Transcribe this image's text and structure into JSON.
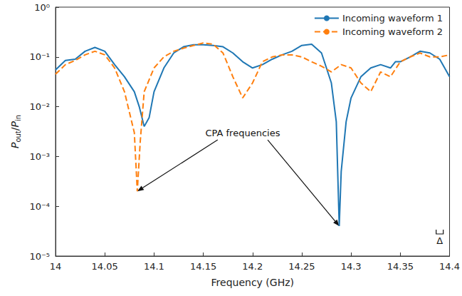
{
  "chart_data": {
    "type": "line",
    "x_label": "Frequency (GHz)",
    "y_label": "Pout/Pin",
    "log": "y",
    "grid": false,
    "legend": "top-right",
    "xlim": [
      14,
      14.4
    ],
    "xticks": [
      14,
      14.05,
      14.1,
      14.15,
      14.2,
      14.25,
      14.3,
      14.35,
      14.4
    ],
    "ylim": [
      1e-05,
      1
    ],
    "yticks": [
      {
        "value": 1e-05,
        "label": "10⁻⁵"
      },
      {
        "value": 0.0001,
        "label": "10⁻⁴"
      },
      {
        "value": 0.001,
        "label": "10⁻³"
      },
      {
        "value": 0.01,
        "label": "10⁻²"
      },
      {
        "value": 0.1,
        "label": "10⁻¹"
      },
      {
        "value": 1,
        "label": "10⁰"
      }
    ],
    "series": [
      {
        "name": "Incoming waveform 1",
        "color": "#1f77b4",
        "line_style": "solid",
        "x": [
          14.0,
          14.01,
          14.02,
          14.03,
          14.04,
          14.05,
          14.06,
          14.07,
          14.08,
          14.085,
          14.09,
          14.095,
          14.1,
          14.11,
          14.12,
          14.13,
          14.14,
          14.15,
          14.16,
          14.17,
          14.18,
          14.19,
          14.2,
          14.21,
          14.22,
          14.23,
          14.24,
          14.25,
          14.26,
          14.27,
          14.28,
          14.285,
          14.288,
          14.29,
          14.295,
          14.3,
          14.31,
          14.32,
          14.33,
          14.34,
          14.345,
          14.35,
          14.36,
          14.37,
          14.38,
          14.39,
          14.4
        ],
        "values": [
          0.055,
          0.085,
          0.09,
          0.13,
          0.155,
          0.13,
          0.07,
          0.04,
          0.02,
          0.01,
          0.004,
          0.006,
          0.02,
          0.06,
          0.12,
          0.16,
          0.175,
          0.175,
          0.17,
          0.16,
          0.12,
          0.08,
          0.06,
          0.07,
          0.09,
          0.11,
          0.13,
          0.17,
          0.18,
          0.12,
          0.03,
          0.005,
          4e-05,
          0.0005,
          0.005,
          0.015,
          0.04,
          0.06,
          0.07,
          0.06,
          0.08,
          0.08,
          0.1,
          0.13,
          0.12,
          0.09,
          0.04
        ]
      },
      {
        "name": "Incoming waveform 2",
        "color": "#ff7f0e",
        "line_style": "dashed",
        "x": [
          14.0,
          14.01,
          14.02,
          14.03,
          14.04,
          14.05,
          14.06,
          14.07,
          14.08,
          14.083,
          14.086,
          14.09,
          14.1,
          14.11,
          14.12,
          14.13,
          14.14,
          14.15,
          14.16,
          14.17,
          14.18,
          14.19,
          14.2,
          14.21,
          14.22,
          14.23,
          14.24,
          14.25,
          14.26,
          14.27,
          14.28,
          14.29,
          14.3,
          14.31,
          14.32,
          14.33,
          14.34,
          14.35,
          14.36,
          14.37,
          14.38,
          14.39,
          14.4
        ],
        "values": [
          0.045,
          0.07,
          0.085,
          0.11,
          0.13,
          0.11,
          0.06,
          0.02,
          0.003,
          0.0002,
          0.002,
          0.02,
          0.06,
          0.1,
          0.13,
          0.15,
          0.17,
          0.19,
          0.18,
          0.12,
          0.04,
          0.015,
          0.03,
          0.08,
          0.1,
          0.11,
          0.11,
          0.1,
          0.08,
          0.065,
          0.05,
          0.07,
          0.06,
          0.03,
          0.02,
          0.05,
          0.04,
          0.08,
          0.1,
          0.12,
          0.1,
          0.1,
          0.11
        ]
      }
    ],
    "annotations": [
      {
        "text": "CPA frequencies",
        "x": 14.19,
        "y": 0.003,
        "arrows_to": [
          [
            14.083,
            0.0002
          ],
          [
            14.288,
            4e-05
          ]
        ]
      },
      {
        "text": "Δ",
        "x": 14.39,
        "y": 2e-05
      }
    ]
  }
}
